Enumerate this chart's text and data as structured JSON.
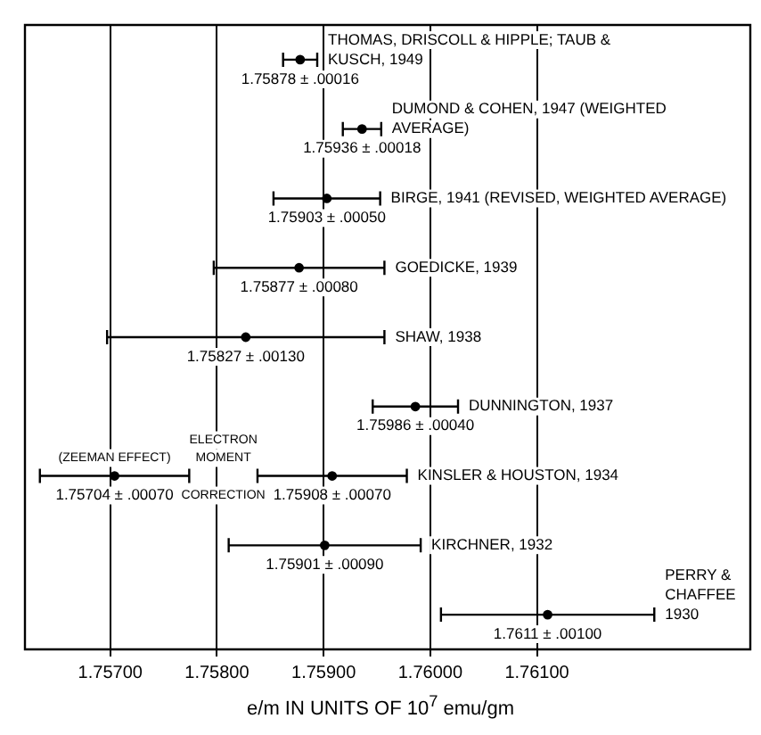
{
  "chart_data": {
    "type": "scatter",
    "orientation": "horizontal",
    "xlabel": "e/m IN UNITS OF 10$^{7}$ emu/gm",
    "categories": [
      "THOMAS, DRISCOLL & HIPPLE; TAUB & KUSCH, 1949",
      "DUMOND & COHEN, 1947 (WEIGHTED AVERAGE)",
      "BIRGE, 1941 (REVISED, WEIGHTED AVERAGE)",
      "GOEDICKE, 1939",
      "SHAW, 1938",
      "DUNNINGTON, 1937",
      "KINSLER & HOUSTON, 1934",
      "KIRCHNER, 1932",
      "PERRY & CHAFFEE 1930"
    ],
    "series": [
      {
        "color": "#000000",
        "values": [
          1.75878,
          1.75936,
          1.75903,
          1.75877,
          1.75827,
          1.75986,
          1.75908,
          1.75901,
          1.7611
        ],
        "errors": [
          0.00016,
          0.00018,
          0.0005,
          0.0008,
          0.0013,
          0.0004,
          0.0007,
          0.0009,
          0.001
        ],
        "value_labels": [
          "1.75878 ± .00016",
          "1.75936 ± .00018",
          "1.75903 ± .00050",
          "1.75877 ± .00080",
          "1.75827 ± .00130",
          "1.75986 ± .00040",
          "1.75908 ± .00070",
          "1.75901 ± .00090",
          "1.7611 ± .00100"
        ]
      },
      {
        "color": "#000000",
        "values": [
          null,
          null,
          null,
          null,
          null,
          null,
          1.75704,
          null,
          null
        ],
        "errors": [
          null,
          null,
          null,
          null,
          null,
          null,
          0.0007,
          null,
          null
        ],
        "value_labels": [
          null,
          null,
          null,
          null,
          null,
          null,
          "1.75704 ± .00070",
          null,
          null
        ]
      }
    ],
    "xlim": [
      1.7562,
      1.763
    ],
    "xticks": [
      {
        "value": 1.757,
        "label": "1.75700"
      },
      {
        "value": 1.758,
        "label": "1.75800"
      },
      {
        "value": 1.759,
        "label": "1.75900"
      },
      {
        "value": 1.76,
        "label": "1.76000"
      },
      {
        "value": 1.761,
        "label": "1.76100"
      }
    ],
    "grid": "x",
    "annotations": [
      {
        "text": "(ZEEMAN EFFECT)",
        "x": 1.75704,
        "y": "KINSLER & HOUSTON, 1934"
      },
      "ELECTRON MOMENT CORRECTION"
    ]
  }
}
